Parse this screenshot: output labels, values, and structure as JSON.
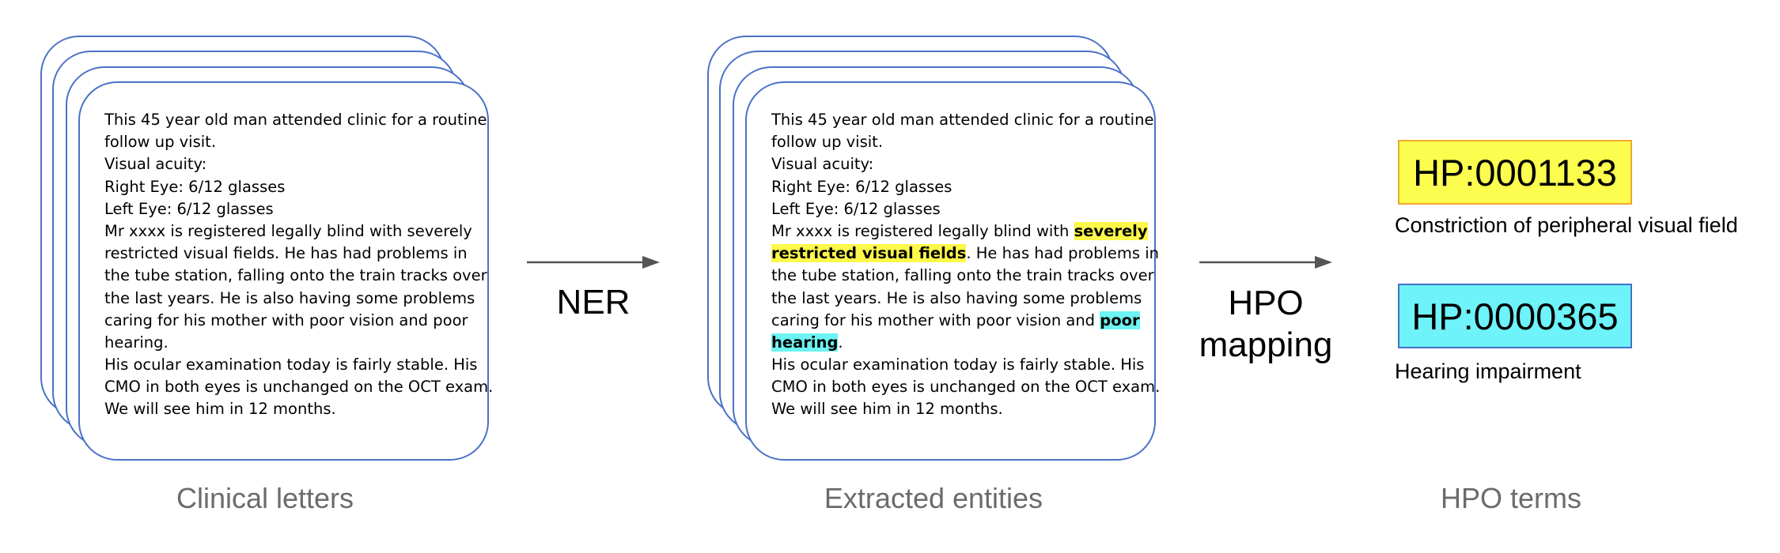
{
  "letter_lines": [
    "This 45 year old man attended clinic for a routine",
    "follow up visit.",
    "Visual acuity:",
    "Right Eye: 6/12 glasses",
    "Left Eye: 6/12 glasses",
    "Mr xxxx is registered legally blind with severely",
    "restricted visual fields. He has had problems in",
    "the tube station, falling onto the train tracks over",
    "the last years. He is also having some problems",
    "caring for his mother with poor vision and poor",
    "hearing.",
    "His ocular examination today is fairly stable. His",
    "CMO in both eyes is unchanged on the OCT exam.",
    "We will see him in 12 months."
  ],
  "entities": {
    "line6_pre": "Mr xxxx is registered legally blind with ",
    "line6_hl": "severely",
    "line7_hl": "restricted visual fields",
    "line7_post": ". He has had problems in",
    "line10_pre": "caring for his mother with poor vision and ",
    "line10_hl": "poor",
    "line11_hl": "hearing",
    "line11_post": "."
  },
  "captions": {
    "letters": "Clinical letters",
    "entities": "Extracted entities",
    "terms": "HPO terms"
  },
  "steps": {
    "ner": "NER",
    "hpo_line1": "HPO",
    "hpo_line2": "mapping"
  },
  "hpo_terms": [
    {
      "id": "HP:0001133",
      "name": "Constriction of peripheral visual field",
      "color": "#fdfd4f",
      "border": "#f0a830"
    },
    {
      "id": "HP:0000365",
      "name": "Hearing impairment",
      "color": "#6df3f9",
      "border": "#4472c4"
    }
  ],
  "colors": {
    "card_border": "#4a72c8",
    "highlight_yellow": "#fdf84a",
    "highlight_cyan": "#6df3f3",
    "caption": "#6b6b6b",
    "arrow": "#555555"
  }
}
